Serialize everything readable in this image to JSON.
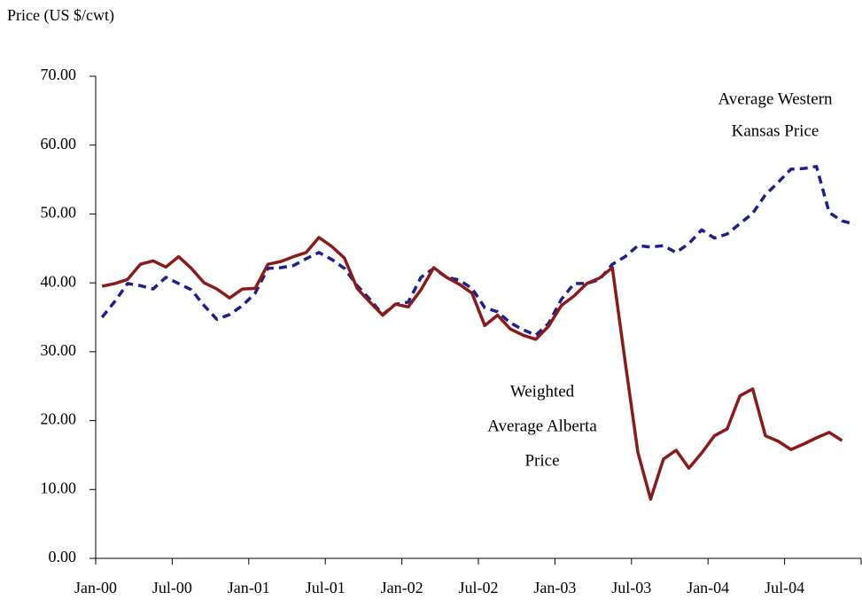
{
  "chart_data": {
    "type": "line",
    "ylabel": "Price (US $/cwt)",
    "categories": [
      "Jan-00",
      null,
      null,
      null,
      null,
      null,
      "Jul-00",
      null,
      null,
      null,
      null,
      null,
      "Jan-01",
      null,
      null,
      null,
      null,
      null,
      "Jul-01",
      null,
      null,
      null,
      null,
      null,
      "Jan-02",
      null,
      null,
      null,
      null,
      null,
      "Jul-02",
      null,
      null,
      null,
      null,
      null,
      "Jan-03",
      null,
      null,
      null,
      null,
      null,
      "Jul-03",
      null,
      null,
      null,
      null,
      null,
      "Jan-04",
      null,
      null,
      null,
      null,
      null,
      "Jul-04",
      null,
      null,
      null,
      null,
      null
    ],
    "ylim": [
      0,
      70
    ],
    "yticks": [
      {
        "value": 0,
        "label": "0.00"
      },
      {
        "value": 10,
        "label": "10.00"
      },
      {
        "value": 20,
        "label": "20.00"
      },
      {
        "value": 30,
        "label": "30.00"
      },
      {
        "value": 40,
        "label": "40.00"
      },
      {
        "value": 50,
        "label": "50.00"
      },
      {
        "value": 60,
        "label": "60.00"
      },
      {
        "value": 70,
        "label": "70.00"
      }
    ],
    "series": [
      {
        "name": "Average Western Kansas Price",
        "color": "#1f1f8f",
        "dashed": true,
        "values": [
          35.0,
          37.3,
          39.9,
          39.6,
          39.1,
          40.8,
          39.9,
          39.0,
          36.7,
          34.7,
          35.4,
          36.7,
          38.5,
          42.1,
          42.2,
          42.5,
          43.5,
          44.4,
          43.4,
          42.1,
          39.6,
          37.6,
          35.4,
          36.9,
          37.2,
          40.8,
          42.1,
          40.8,
          40.4,
          39.2,
          36.4,
          35.8,
          34.2,
          33.2,
          32.4,
          34.1,
          37.6,
          39.9,
          39.9,
          40.5,
          42.7,
          43.8,
          45.4,
          45.2,
          45.4,
          44.4,
          45.7,
          47.7,
          46.5,
          47.1,
          48.6,
          50.1,
          52.8,
          54.6,
          56.5,
          56.6,
          56.9,
          50.2,
          49.0,
          48.5
        ]
      },
      {
        "name": "Weighted Average Alberta Price",
        "color": "#8b1a1a",
        "dashed": false,
        "values": [
          39.5,
          39.9,
          40.5,
          42.7,
          43.2,
          42.3,
          43.8,
          42.1,
          40.0,
          39.1,
          37.8,
          39.1,
          39.2,
          42.7,
          43.1,
          43.8,
          44.4,
          46.6,
          45.3,
          43.6,
          39.2,
          37.2,
          35.3,
          36.9,
          36.5,
          39.0,
          42.2,
          40.8,
          39.8,
          38.5,
          33.8,
          35.3,
          33.3,
          32.4,
          31.8,
          33.7,
          36.7,
          38.1,
          39.9,
          40.7,
          42.2,
          28.6,
          15.4,
          8.6,
          14.4,
          15.7,
          13.1,
          15.3,
          17.8,
          18.8,
          23.6,
          24.6,
          17.8,
          17.0,
          15.8,
          16.6,
          17.5,
          18.3,
          17.1,
          null
        ]
      }
    ],
    "annotations": [
      {
        "lines": [
          "Average Western",
          "Kansas Price"
        ]
      },
      {
        "lines": [
          "Weighted",
          "Average Alberta",
          "Price"
        ]
      }
    ]
  }
}
